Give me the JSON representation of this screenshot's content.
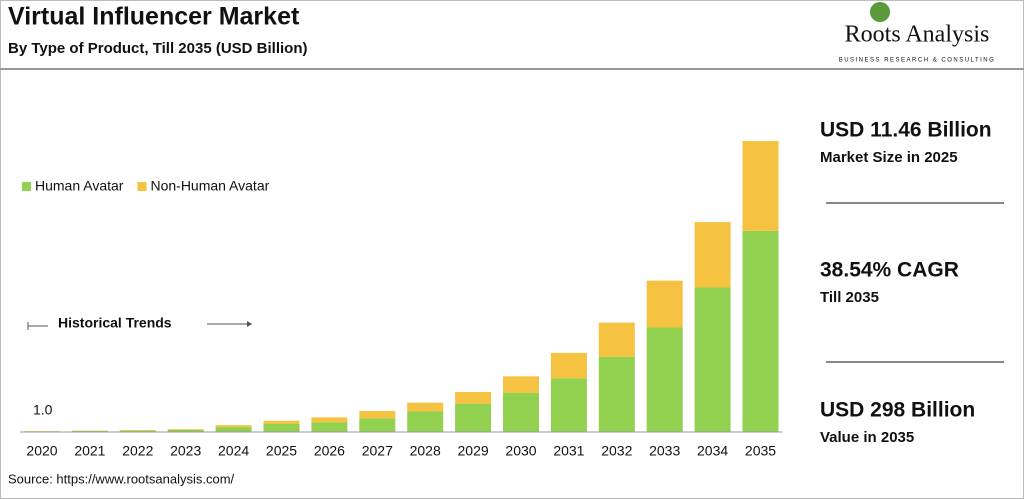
{
  "header": {
    "title": "Virtual Influencer Market",
    "subtitle": "By Type of Product, Till 2035 (USD Billion)",
    "logo": "Roots Analysis",
    "logo_tagline": "BUSINESS RESEARCH & CONSULTING"
  },
  "chart_data": {
    "type": "stacked_bar",
    "categories": [
      "2020",
      "2021",
      "2022",
      "2023",
      "2024",
      "2025",
      "2026",
      "2027",
      "2028",
      "2029",
      "2030",
      "2031",
      "2032",
      "2033",
      "2034",
      "2035"
    ],
    "series": [
      {
        "name": "Human Avatar",
        "color": "#92d050",
        "values": [
          0.7,
          1.0,
          1.4,
          2.2,
          5,
          8.2,
          10,
          14,
          21,
          29,
          40,
          55,
          77,
          107,
          148,
          206
        ]
      },
      {
        "name": "Non-Human Avatar",
        "color": "#f5c242",
        "values": [
          0.3,
          0.4,
          0.6,
          0.8,
          2,
          3.26,
          5,
          7.5,
          9,
          12,
          17,
          26,
          35,
          48,
          67,
          92
        ]
      }
    ],
    "annotations": [
      "1.0",
      "Historical Trends"
    ],
    "legend": "top-left"
  },
  "highlights": [
    {
      "value": "USD 11.46 Billion",
      "label": "Market Size in 2025"
    },
    {
      "value": "38.54% CAGR",
      "label": "Till 2035"
    },
    {
      "value": "USD 298 Billion",
      "label": "Value in 2035"
    }
  ],
  "source": "Source: https://www.rootsanalysis.com/"
}
